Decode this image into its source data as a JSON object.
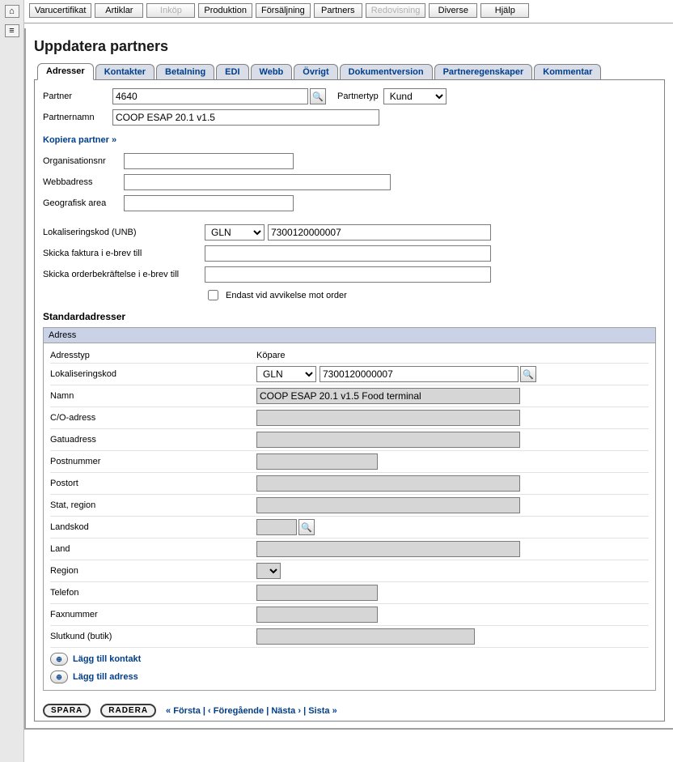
{
  "topbar": {
    "items": [
      {
        "label": "Varucertifikat",
        "disabled": false
      },
      {
        "label": "Artiklar",
        "disabled": false
      },
      {
        "label": "Inköp",
        "disabled": true
      },
      {
        "label": "Produktion",
        "disabled": false
      },
      {
        "label": "Försäljning",
        "disabled": false
      },
      {
        "label": "Partners",
        "disabled": false
      },
      {
        "label": "Redovisning",
        "disabled": true
      },
      {
        "label": "Diverse",
        "disabled": false
      },
      {
        "label": "Hjälp",
        "disabled": false
      }
    ]
  },
  "page": {
    "title": "Uppdatera partners"
  },
  "tabs": [
    {
      "label": "Adresser",
      "active": true
    },
    {
      "label": "Kontakter"
    },
    {
      "label": "Betalning"
    },
    {
      "label": "EDI"
    },
    {
      "label": "Webb"
    },
    {
      "label": "Övrigt"
    },
    {
      "label": "Dokumentversion"
    },
    {
      "label": "Partneregenskaper"
    },
    {
      "label": "Kommentar"
    }
  ],
  "form": {
    "partner_label": "Partner",
    "partner_value": "4640",
    "partnertyp_label": "Partnertyp",
    "partnertyp_value": "Kund",
    "partnernamn_label": "Partnernamn",
    "partnernamn_value": "COOP ESAP 20.1 v1.5",
    "kopiera_link": "Kopiera partner »",
    "orgnr_label": "Organisationsnr",
    "orgnr_value": "",
    "webb_label": "Webbadress",
    "webb_value": "",
    "geo_label": "Geografisk area",
    "geo_value": "",
    "lok_label": "Lokaliseringskod (UNB)",
    "lok_type": "GLN",
    "lok_value": "7300120000007",
    "faktura_label": "Skicka faktura i e-brev till",
    "faktura_value": "",
    "orderbek_label": "Skicka orderbekräftelse i e-brev till",
    "orderbek_value": "",
    "endast_label": "Endast vid avvikelse mot order"
  },
  "adresser": {
    "section_title": "Standardadresser",
    "box_title": "Adress",
    "rows": {
      "adresstyp_label": "Adresstyp",
      "adresstyp_value": "Köpare",
      "lok_label": "Lokaliseringskod",
      "lok_type": "GLN",
      "lok_value": "7300120000007",
      "namn_label": "Namn",
      "namn_value": "COOP ESAP 20.1 v1.5 Food terminal",
      "co_label": "C/O-adress",
      "gatu_label": "Gatuadress",
      "postnr_label": "Postnummer",
      "postort_label": "Postort",
      "stat_label": "Stat, region",
      "landskod_label": "Landskod",
      "land_label": "Land",
      "region_label": "Region",
      "telefon_label": "Telefon",
      "fax_label": "Faxnummer",
      "slutkund_label": "Slutkund (butik)"
    },
    "add_contact": "Lägg till kontakt",
    "add_address": "Lägg till adress"
  },
  "footer": {
    "save": "SPARA",
    "delete": "RADERA",
    "first": "« Första",
    "prev": "‹ Föregående",
    "next": "Nästa ›",
    "last": "Sista »"
  },
  "colors": {
    "link": "#003e8a",
    "tab_bg": "#d8dde7",
    "adress_head": "#c9d2e6",
    "grey_input": "#d6d6d6"
  }
}
